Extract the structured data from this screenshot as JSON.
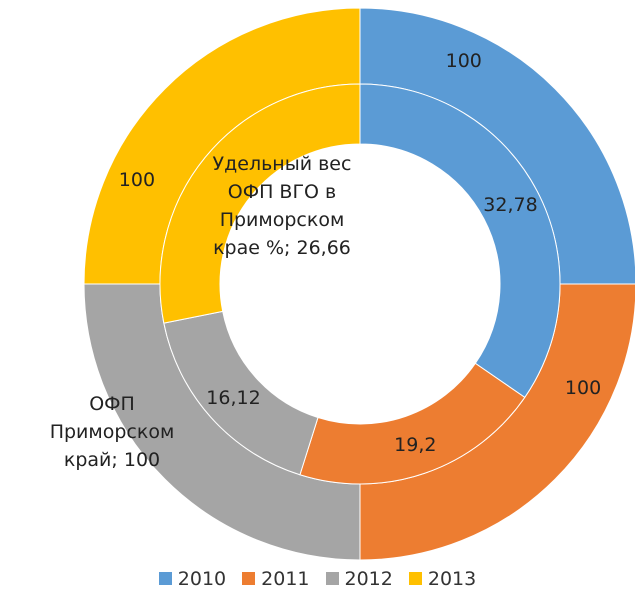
{
  "chart_data": {
    "type": "doughnut",
    "categories": [
      "2010",
      "2011",
      "2012",
      "2013"
    ],
    "colors": [
      "#5b9bd5",
      "#ed7d31",
      "#a5a5a5",
      "#ffc000"
    ],
    "label_separator": "; ",
    "series": [
      {
        "name": "ОФП Приморском край",
        "values": [
          100,
          100,
          100,
          100
        ],
        "value_labels": [
          "100",
          "100",
          "100",
          "100"
        ],
        "name_shown_on": 2
      },
      {
        "name": "Удельный вес ОФП  ВГО в Приморском крае %",
        "values": [
          32.78,
          19.2,
          16.12,
          26.66
        ],
        "value_labels": [
          "32,78",
          "19,2",
          "16,12",
          "26,66"
        ],
        "name_shown_on": 3
      }
    ]
  }
}
